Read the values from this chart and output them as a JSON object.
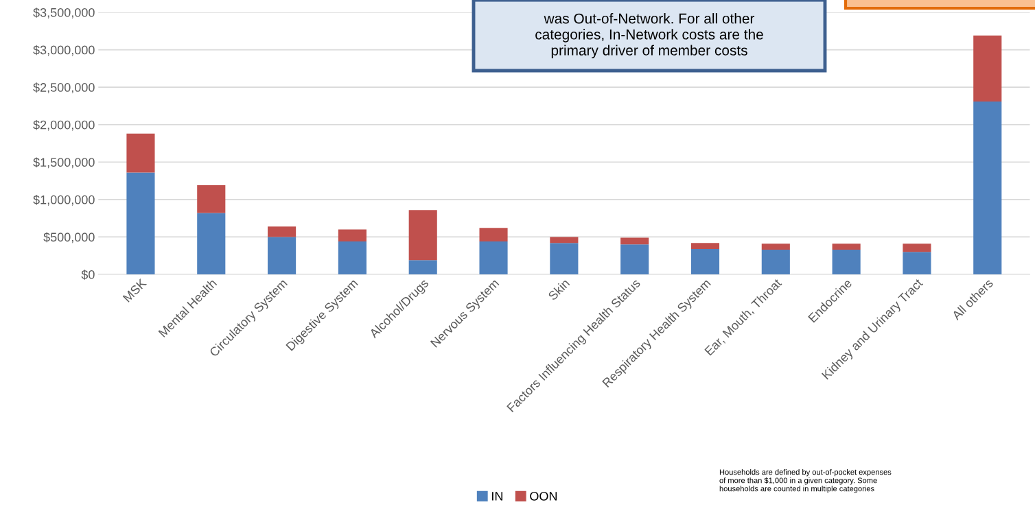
{
  "chart_data": {
    "type": "bar",
    "stacked": true,
    "categories": [
      "MSK",
      "Mental Health",
      "Circulatory System",
      "Digestive System",
      "Alcohol/Drugs",
      "Nervous System",
      "Skin",
      "Factors Influencing Health Status",
      "Respiratory Health System",
      "Ear, Mouth, Throat",
      "Endocrine",
      "Kidney and Urinary Tract",
      "All others"
    ],
    "series": [
      {
        "name": "IN",
        "color": "#4f81bd",
        "values": [
          1360000,
          820000,
          500000,
          440000,
          190000,
          440000,
          420000,
          400000,
          340000,
          330000,
          330000,
          300000,
          2310000
        ]
      },
      {
        "name": "OON",
        "color": "#c0504d",
        "values": [
          520000,
          370000,
          140000,
          160000,
          670000,
          180000,
          80000,
          90000,
          80000,
          80000,
          80000,
          110000,
          880000
        ]
      }
    ],
    "ylim": [
      0,
      3500000
    ],
    "yticks": [
      {
        "value": 0,
        "label": "$0"
      },
      {
        "value": 500000,
        "label": "$500,000"
      },
      {
        "value": 1000000,
        "label": "$1,000,000"
      },
      {
        "value": 1500000,
        "label": "$1,500,000"
      },
      {
        "value": 2000000,
        "label": "$2,000,000"
      },
      {
        "value": 2500000,
        "label": "$2,500,000"
      },
      {
        "value": 3000000,
        "label": "$3,000,000"
      },
      {
        "value": 3500000,
        "label": "$3,500,000"
      }
    ],
    "grid": "y",
    "legend": "bottom",
    "annotations": [
      "was Out-of-Network. For all other\ncategories, In-Network costs are the\nprimary driver of member costs",
      "Households are defined by out-of-pocket expenses\nof more than $1,000 in a given category. Some\nhouseholds are counted in multiple categories"
    ]
  }
}
